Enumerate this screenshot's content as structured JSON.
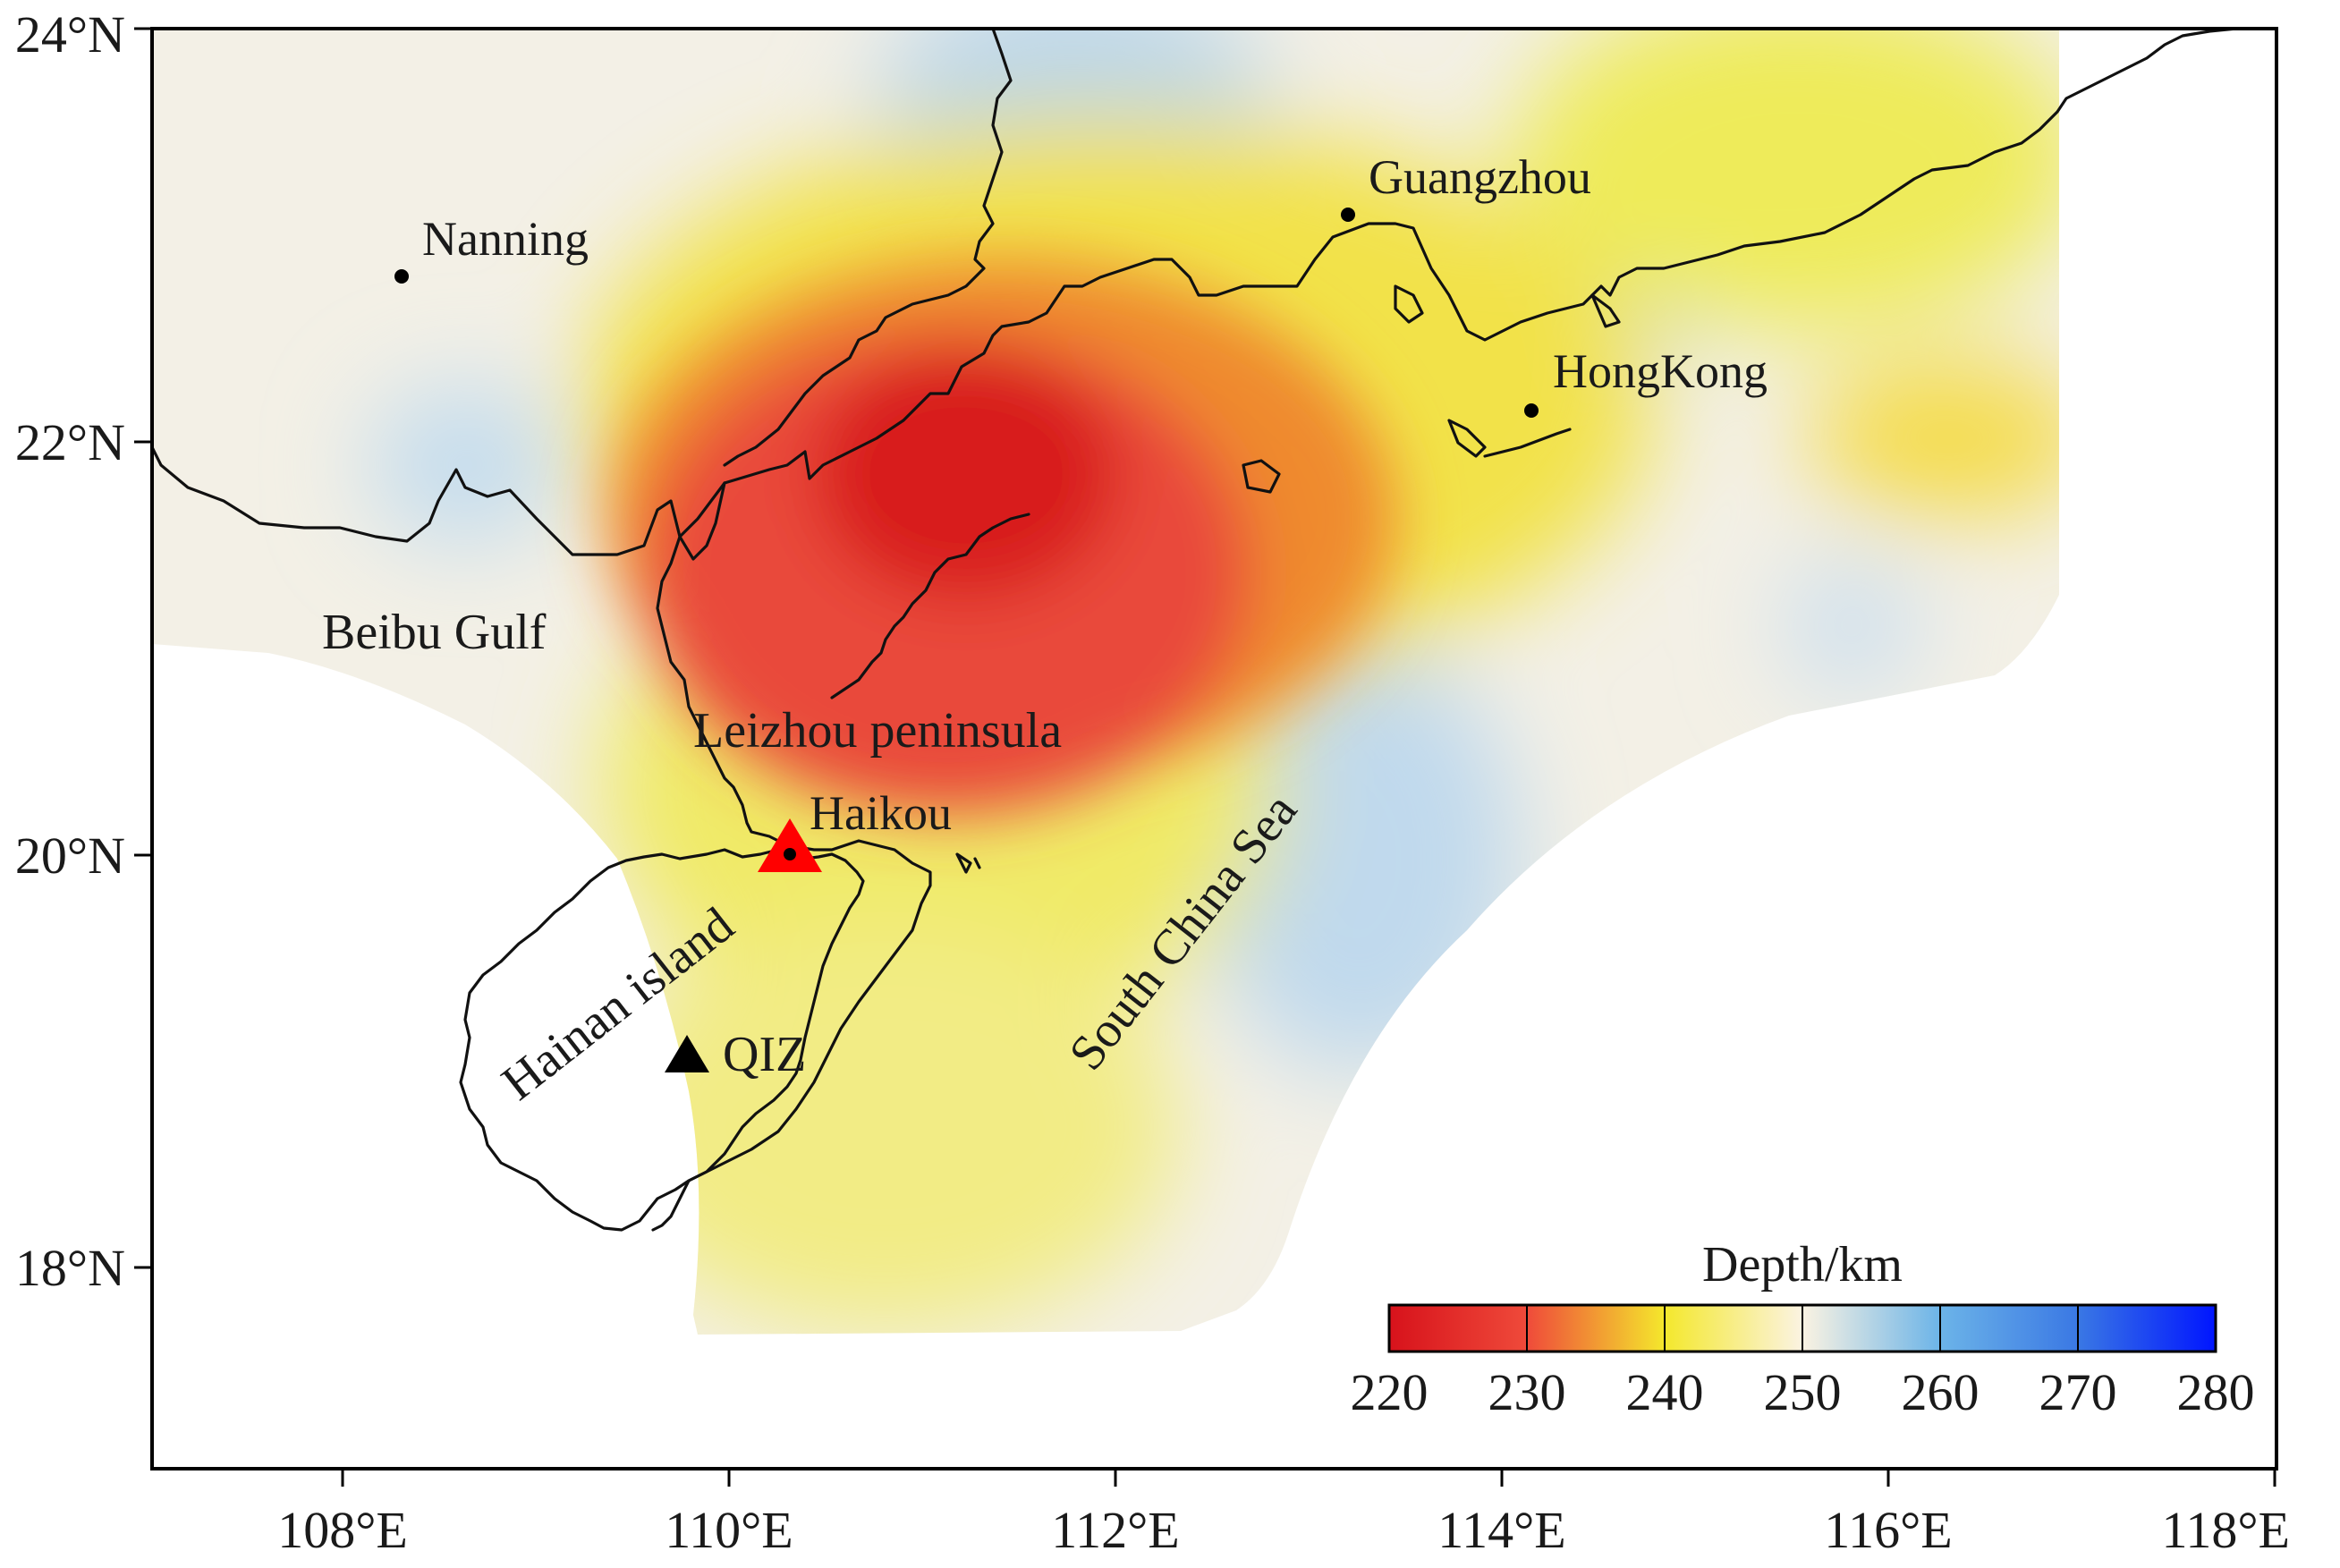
{
  "map": {
    "x_ticks": [
      "108°E",
      "110°E",
      "112°E",
      "114°E",
      "116°E",
      "118°E"
    ],
    "y_ticks": [
      "24°N",
      "22°N",
      "20°N",
      "18°N"
    ],
    "cities": [
      {
        "name": "Nanning",
        "lon": 108.3,
        "lat": 22.8
      },
      {
        "name": "Guangzhou",
        "lon": 113.2,
        "lat": 23.1
      },
      {
        "name": "HongKong",
        "lon": 114.15,
        "lat": 22.15
      },
      {
        "name": "Haikou",
        "lon": 110.3,
        "lat": 20.02
      }
    ],
    "regions": {
      "beibu_gulf": "Beibu Gulf",
      "leizhou": "Leizhou peninsula",
      "hainan": "Hainan island",
      "south_china_sea": "South China Sea"
    },
    "stations": [
      {
        "name": "QIZ",
        "color": "#000000",
        "lon": 109.8,
        "lat": 19.0
      },
      {
        "name": "",
        "color": "#ff0000",
        "lon": 110.3,
        "lat": 20.02
      }
    ]
  },
  "colorbar": {
    "title": "Depth/km",
    "ticks": [
      "220",
      "230",
      "240",
      "250",
      "260",
      "270",
      "280"
    ],
    "colors": [
      "#d7121b",
      "#ef4a3a",
      "#f4e82c",
      "#fbf3e2",
      "#6cb4e8",
      "#3a78e4",
      "#0015ff"
    ]
  }
}
